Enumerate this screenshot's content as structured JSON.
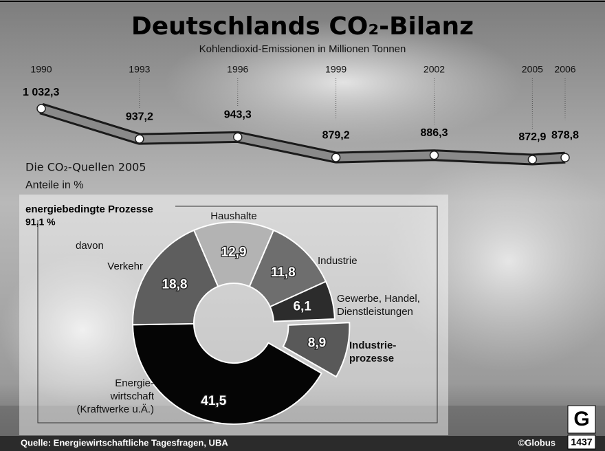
{
  "title": "Deutschlands CO₂-Bilanz",
  "chart_data": [
    {
      "type": "line",
      "subtitle": "Kohlendioxid-Emissionen in Millionen Tonnen",
      "x": [
        1990,
        1993,
        1996,
        1999,
        2002,
        2005,
        2006
      ],
      "xlim": [
        1990,
        2006
      ],
      "xticks": [
        1990,
        1993,
        1996,
        1999,
        2002,
        2005,
        2006
      ],
      "values": [
        1032.3,
        937.2,
        943.3,
        879.2,
        886.3,
        872.9,
        878.8
      ],
      "value_labels": [
        "1 032,3",
        "937,2",
        "943,3",
        "879,2",
        "886,3",
        "872,9",
        "878,8"
      ],
      "color": "#8a8a8a"
    },
    {
      "type": "donut",
      "title": "Die CO₂-Quellen 2005",
      "subtitle": "Anteile in %",
      "group_label": "energiebedingte Prozesse",
      "group_value": 91.1,
      "group_value_label": "91,1 %",
      "sublabel": "davon",
      "categories": [
        "Haushalte",
        "Industrie",
        "Gewerbe, Handel,\nDienstleistungen",
        "Industrie-\nprozesse",
        "Energie-\nwirtschaft\n(Kraftwerke u.Ä.)",
        "Verkehr"
      ],
      "values": [
        12.9,
        11.8,
        6.1,
        8.9,
        41.5,
        18.8
      ],
      "value_labels": [
        "12,9",
        "11,8",
        "6,1",
        "8,9",
        "41,5",
        "18,8"
      ],
      "colors": [
        "#b3b3b3",
        "#6e6e6e",
        "#2c2c2c",
        "#595959",
        "#050505",
        "#5e5e5e"
      ],
      "exploded": [
        false,
        false,
        false,
        true,
        false,
        false
      ]
    }
  ],
  "footer": {
    "source": "Quelle: Energiewirtschaftliche Tagesfragen, UBA",
    "credit": "©Globus",
    "number": "1437"
  }
}
